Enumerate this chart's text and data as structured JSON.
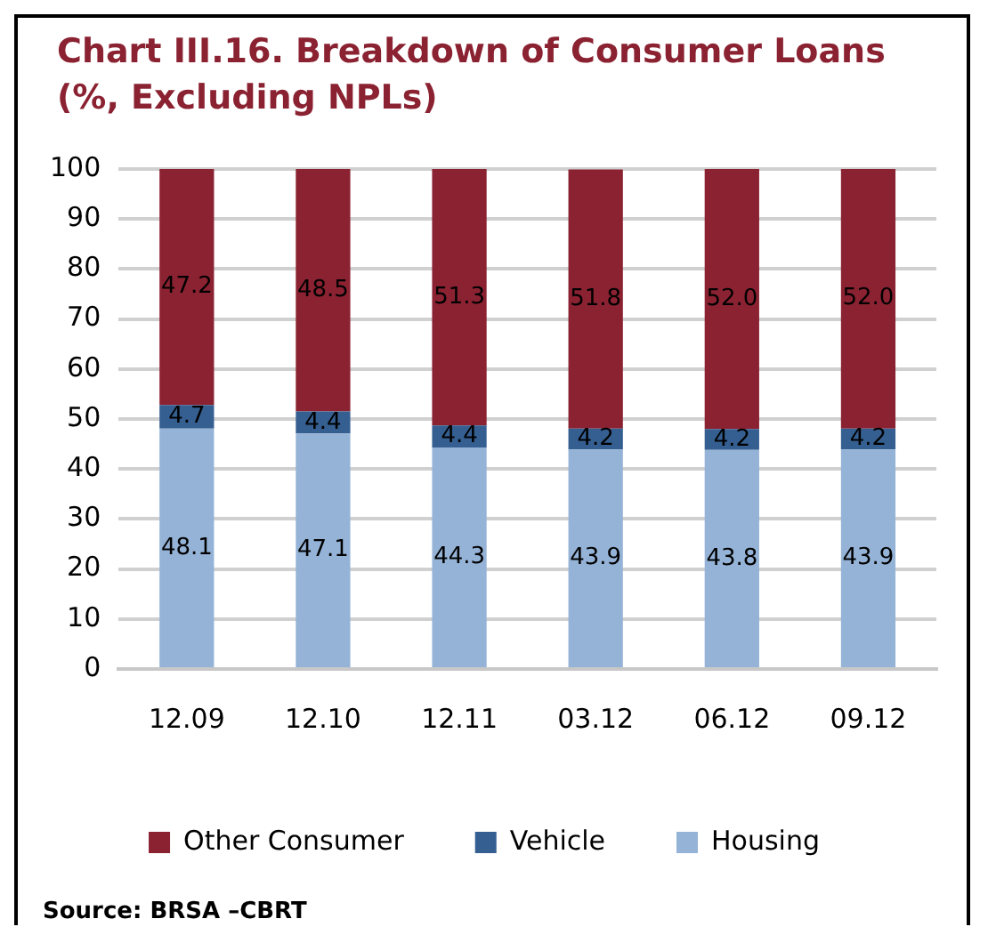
{
  "chart_data": {
    "type": "bar",
    "title": "Chart III.16. Breakdown of Consumer Loans (%, Excluding NPLs)",
    "categories": [
      "12.09",
      "12.10",
      "12.11",
      "03.12",
      "06.12",
      "09.12"
    ],
    "series": [
      {
        "name": "Housing",
        "color": "#95b3d7",
        "values": [
          48.1,
          47.1,
          44.3,
          43.9,
          43.8,
          43.9
        ],
        "value_labels": [
          "48.1",
          "47.1",
          "44.3",
          "43.9",
          "43.8",
          "43.9"
        ]
      },
      {
        "name": "Vehicle",
        "color": "#355f91",
        "values": [
          4.7,
          4.4,
          4.4,
          4.2,
          4.2,
          4.2
        ],
        "value_labels": [
          "4.7",
          "4.4",
          "4.4",
          "4.2",
          "4.2",
          "4.2"
        ]
      },
      {
        "name": "Other Consumer",
        "color": "#8b2232",
        "values": [
          47.2,
          48.5,
          51.3,
          51.8,
          52,
          52
        ],
        "value_labels": [
          "47.2",
          "48.5",
          "51.3",
          "51.8",
          "52.0",
          "52.0"
        ]
      }
    ],
    "stacked": true,
    "ylim": [
      0,
      100
    ],
    "yticks": [
      0,
      10,
      20,
      30,
      40,
      50,
      60,
      70,
      80,
      90,
      100
    ],
    "grid": "y",
    "legend": "bottom",
    "annotations": [
      "Source: BRSA –CBRT"
    ]
  }
}
